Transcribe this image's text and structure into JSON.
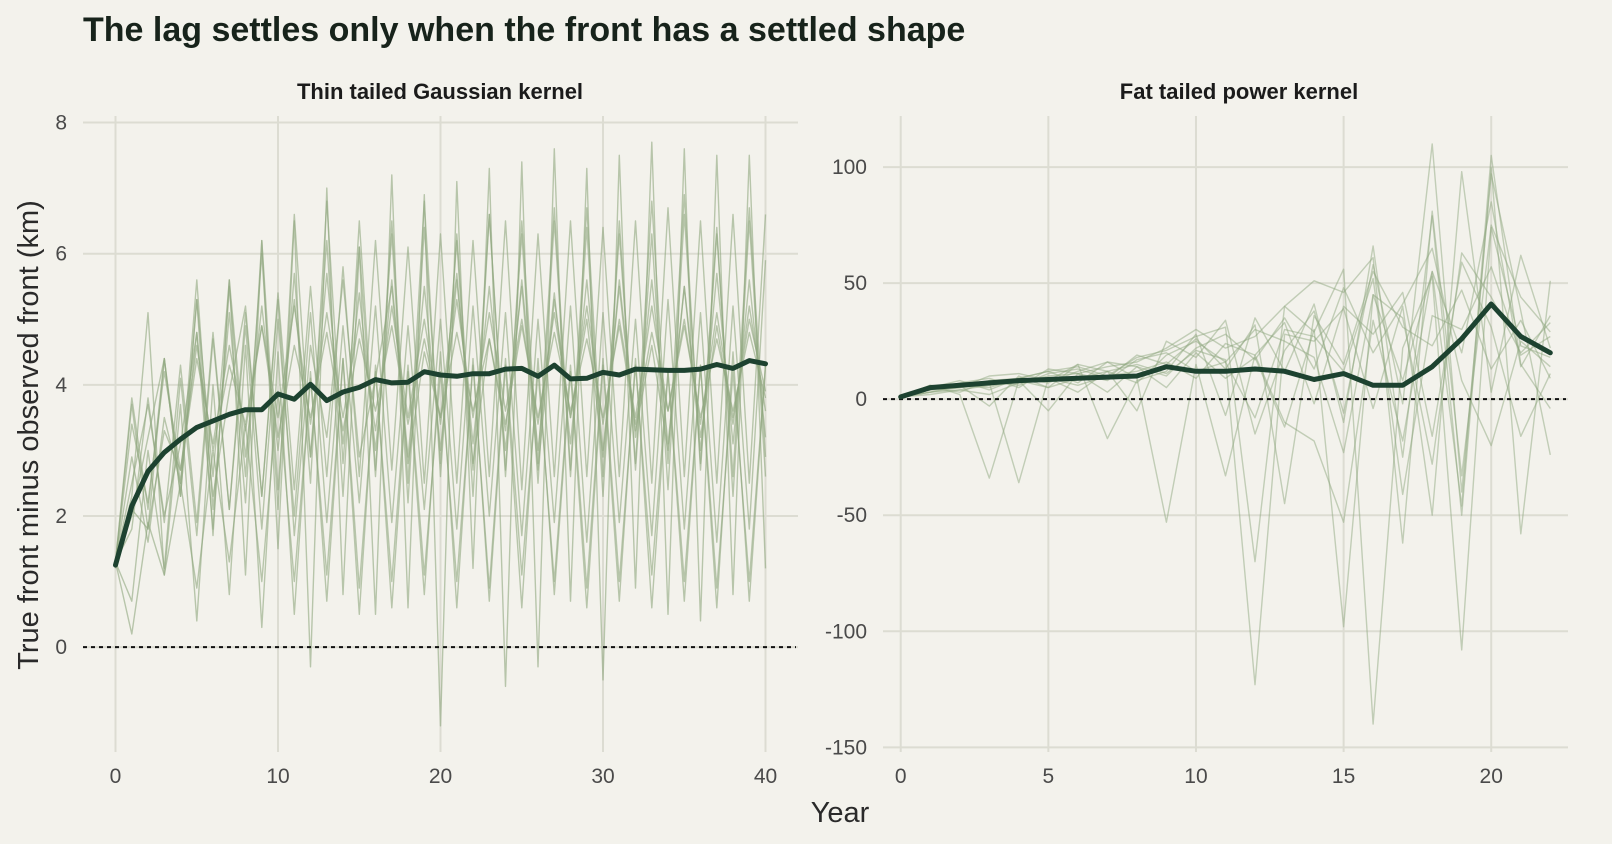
{
  "title": "The lag settles only when the front has a settled shape",
  "x_axis_title": "Year",
  "y_axis_title": "True front minus observed front (km)",
  "colors": {
    "background": "#f3f2ec",
    "grid": "#dcdcd2",
    "mean_line": "#1d4230",
    "run_lines": "#8fa77f",
    "zero_line": "#111111"
  },
  "chart_data": [
    {
      "type": "line",
      "title": "Thin tailed Gaussian kernel",
      "xlabel": "Year",
      "ylabel": "True front minus observed front (km)",
      "xlim": [
        -2,
        42
      ],
      "ylim": [
        -1.6,
        8.1
      ],
      "x_ticks": [
        0,
        10,
        20,
        30,
        40
      ],
      "y_ticks": [
        0,
        2,
        4,
        6,
        8
      ],
      "reference_line": {
        "y": 0,
        "style": "dotted"
      },
      "grid": true,
      "x": [
        0,
        1,
        2,
        3,
        4,
        5,
        6,
        7,
        8,
        9,
        10,
        11,
        12,
        13,
        14,
        15,
        16,
        17,
        18,
        19,
        20,
        21,
        22,
        23,
        24,
        25,
        26,
        27,
        28,
        29,
        30,
        31,
        32,
        33,
        34,
        35,
        36,
        37,
        38,
        39,
        40
      ],
      "mean": [
        1.25,
        2.15,
        2.68,
        2.97,
        3.17,
        3.35,
        3.45,
        3.55,
        3.62,
        3.62,
        3.86,
        3.78,
        4.01,
        3.76,
        3.89,
        3.96,
        4.08,
        4.03,
        4.04,
        4.2,
        4.15,
        4.13,
        4.17,
        4.17,
        4.24,
        4.25,
        4.13,
        4.3,
        4.09,
        4.1,
        4.19,
        4.15,
        4.24,
        4.23,
        4.22,
        4.22,
        4.24,
        4.31,
        4.25,
        4.37,
        4.32
      ],
      "runs": [
        [
          1.3,
          3.8,
          2.1,
          4.4,
          2.5,
          5.6,
          2.1,
          5.1,
          2.2,
          6.2,
          2.4,
          5.7,
          2.5,
          6.8,
          2.8,
          6.1,
          2.6,
          6.5,
          2.5,
          6.8,
          2.6,
          6.3,
          2.7,
          6.6,
          2.6,
          6.5,
          2.8,
          6.7,
          2.7,
          6.7,
          2.6,
          6.3,
          2.8,
          6.8,
          2.8,
          6.9,
          2.7,
          6.3,
          2.6,
          6.7,
          2.9
        ],
        [
          1.3,
          1.8,
          3.8,
          1.9,
          4.3,
          1.9,
          4.8,
          2.1,
          5.1,
          2.3,
          5.4,
          2.4,
          5.5,
          2.6,
          5.8,
          2.6,
          6.2,
          2.7,
          6.1,
          2.5,
          6.3,
          2.5,
          6.2,
          2.6,
          6.5,
          2.4,
          6.3,
          2.6,
          6.5,
          2.6,
          6.4,
          2.6,
          6.5,
          2.5,
          6.7,
          2.6,
          6.5,
          2.5,
          6.6,
          2.5,
          6.6
        ],
        [
          1.3,
          3.7,
          1.8,
          4.4,
          2.3,
          5.3,
          2.6,
          5.6,
          2.9,
          5.2,
          3.0,
          5.3,
          2.9,
          5.7,
          3.1,
          5.4,
          3.0,
          5.6,
          2.9,
          5.5,
          3.0,
          5.6,
          3.1,
          5.5,
          3.0,
          5.6,
          3.0,
          5.4,
          3.1,
          5.6,
          3.0,
          5.5,
          3.2,
          5.6,
          3.1,
          5.5,
          3.0,
          5.7,
          3.1,
          5.6,
          3.2
        ],
        [
          1.2,
          2.1,
          1.8,
          3.3,
          2.7,
          4.4,
          3.1,
          4.6,
          3.3,
          4.9,
          3.5,
          5.2,
          3.4,
          5.1,
          3.5,
          5.0,
          3.3,
          5.2,
          3.5,
          5.0,
          3.4,
          5.3,
          3.5,
          5.1,
          3.6,
          5.0,
          3.4,
          5.1,
          3.5,
          5.2,
          3.4,
          5.0,
          3.5,
          5.2,
          3.6,
          5.0,
          3.4,
          5.1,
          3.5,
          5.0,
          3.9
        ],
        [
          1.3,
          2.5,
          3.7,
          2.0,
          3.1,
          4.8,
          2.3,
          3.9,
          5.2,
          2.3,
          5.3,
          1.7,
          4.6,
          3.2,
          5.6,
          2.9,
          4.1,
          5.5,
          2.8,
          4.5,
          3.5,
          5.7,
          2.8,
          4.7,
          3.3,
          5.5,
          2.7,
          5.3,
          3.5,
          5.0,
          2.9,
          5.6,
          3.3,
          4.6,
          3.0,
          5.5,
          3.2,
          4.9,
          3.4,
          5.2,
          3.6
        ],
        [
          1.3,
          0.7,
          3.0,
          1.2,
          4.1,
          1.7,
          4.7,
          2.1,
          4.9,
          1.8,
          5.0,
          2.0,
          5.1,
          1.9,
          4.9,
          2.2,
          5.2,
          1.9,
          4.9,
          2.1,
          5.0,
          1.8,
          5.2,
          2.0,
          5.1,
          1.7,
          5.0,
          1.9,
          5.2,
          1.6,
          5.1,
          1.9,
          5.0,
          1.7,
          5.3,
          1.8,
          5.1,
          1.6,
          5.2,
          1.8,
          5.9
        ],
        [
          1.3,
          0.2,
          1.9,
          1.1,
          2.5,
          0.9,
          3.0,
          1.3,
          3.4,
          1.0,
          3.9,
          1.0,
          4.1,
          1.1,
          4.4,
          0.9,
          4.2,
          1.0,
          4.3,
          1.1,
          4.2,
          1.0,
          4.3,
          0.9,
          4.4,
          1.1,
          4.2,
          1.0,
          4.3,
          0.9,
          4.4,
          1.0,
          4.3,
          1.1,
          4.2,
          1.0,
          4.3,
          0.9,
          4.2,
          1.0,
          4.3
        ],
        [
          1.3,
          2.3,
          5.1,
          1.1,
          3.7,
          0.4,
          4.0,
          0.8,
          4.6,
          0.3,
          4.5,
          0.5,
          4.2,
          0.7,
          4.4,
          0.5,
          4.3,
          0.6,
          4.2,
          0.8,
          4.5,
          0.6,
          4.4,
          0.7,
          4.3,
          0.6,
          4.4,
          0.8,
          4.2,
          0.6,
          4.3,
          0.7,
          4.4,
          0.6,
          4.2,
          0.7,
          4.3,
          0.6,
          4.5,
          0.7,
          4.3
        ],
        [
          1.3,
          2.0,
          3.2,
          4.4,
          2.3,
          5.3,
          1.7,
          5.6,
          1.1,
          6.2,
          1.5,
          6.5,
          -0.3,
          7.0,
          0.8,
          6.1,
          0.5,
          7.2,
          0.6,
          6.9,
          -1.2,
          7.1,
          1.2,
          7.3,
          -0.6,
          7.4,
          -0.3,
          7.6,
          0.7,
          7.3,
          -0.5,
          7.5,
          0.9,
          7.7,
          0.5,
          7.6,
          0.4,
          7.5,
          0.8,
          7.5,
          1.2
        ],
        [
          1.3,
          2.9,
          1.6,
          3.5,
          2.5,
          4.8,
          1.8,
          5.5,
          2.6,
          6.0,
          2.1,
          6.6,
          2.9,
          6.2,
          2.3,
          6.5,
          2.7,
          6.3,
          2.2,
          6.4,
          2.8,
          6.2,
          2.3,
          6.6,
          2.7,
          6.3,
          2.5,
          6.5,
          2.6,
          6.4,
          2.3,
          6.5,
          2.7,
          6.3,
          2.4,
          6.6,
          2.8,
          6.4,
          2.3,
          6.5,
          2.6
        ],
        [
          1.3,
          3.4,
          2.2,
          4.2,
          2.7,
          4.6,
          3.0,
          4.3,
          3.4,
          4.9,
          3.2,
          4.6,
          3.5,
          4.8,
          3.3,
          4.7,
          3.6,
          4.9,
          3.4,
          4.7,
          3.5,
          4.8,
          3.6,
          4.7,
          3.4,
          4.9,
          3.5,
          4.8,
          3.6,
          4.7,
          3.5,
          4.9,
          3.4,
          4.8,
          3.6,
          4.9,
          3.5,
          4.7,
          3.6,
          4.8,
          3.8
        ]
      ]
    },
    {
      "type": "line",
      "title": "Fat tailed power kernel",
      "xlabel": "Year",
      "ylabel": "",
      "xlim": [
        -0.6,
        22.6
      ],
      "ylim": [
        -152,
        122
      ],
      "x_ticks": [
        0,
        5,
        10,
        15,
        20
      ],
      "y_ticks": [
        -150,
        -100,
        -50,
        0,
        50,
        100
      ],
      "reference_line": {
        "y": 0,
        "style": "dotted"
      },
      "grid": true,
      "x": [
        0,
        1,
        2,
        3,
        4,
        5,
        6,
        7,
        8,
        9,
        10,
        11,
        12,
        13,
        14,
        15,
        16,
        17,
        18,
        19,
        20,
        21,
        22
      ],
      "mean": [
        1,
        5,
        6,
        7,
        8,
        8.5,
        9,
        9.5,
        10,
        14,
        12,
        12,
        13,
        12,
        8.5,
        11,
        6,
        6,
        14,
        26,
        41,
        27,
        20
      ],
      "runs": [
        [
          1,
          4,
          6,
          -3,
          10,
          5,
          15,
          -17,
          8,
          12,
          28,
          -7,
          35,
          12,
          41,
          -10,
          66,
          -25,
          79,
          -50,
          100,
          -58,
          51
        ],
        [
          1,
          6,
          2,
          -34,
          8,
          -5,
          11,
          3,
          14,
          5,
          20,
          9,
          18,
          -12,
          30,
          -98,
          45,
          8,
          55,
          20,
          85,
          14,
          36
        ],
        [
          1,
          3,
          5,
          7,
          -36,
          9,
          3,
          12,
          -5,
          25,
          18,
          34,
          -15,
          21,
          38,
          -6,
          58,
          -2,
          110,
          -40,
          97,
          38,
          -24
        ],
        [
          1,
          5,
          6,
          8,
          9,
          12,
          14,
          10,
          18,
          21,
          27,
          31,
          -70,
          40,
          29,
          56,
          -140,
          22,
          53,
          -108,
          74,
          23,
          18
        ],
        [
          1,
          4,
          5,
          6,
          7,
          10,
          11,
          14,
          16,
          22,
          30,
          22,
          27,
          40,
          51,
          46,
          61,
          -62,
          81,
          -33,
          75,
          44,
          29
        ],
        [
          1,
          5,
          8,
          4,
          9,
          7,
          12,
          16,
          9,
          -53,
          15,
          -33,
          19,
          -10,
          -18,
          -53,
          34,
          -18,
          55,
          -46,
          105,
          15,
          -4
        ],
        [
          1,
          2,
          4,
          6,
          8,
          5,
          9,
          12,
          15,
          11,
          21,
          17,
          -123,
          28,
          25,
          39,
          -4,
          40,
          -50,
          98,
          3,
          62,
          22
        ],
        [
          1,
          3,
          4,
          2,
          7,
          9,
          6,
          10,
          12,
          16,
          9,
          24,
          19,
          33,
          -2,
          40,
          28,
          46,
          -16,
          59,
          31,
          -16,
          11
        ],
        [
          1,
          4,
          7,
          9,
          5,
          13,
          11,
          8,
          17,
          20,
          12,
          16,
          30,
          25,
          18,
          -23,
          45,
          35,
          -28,
          63,
          44,
          20,
          33
        ],
        [
          1,
          6,
          5,
          10,
          11,
          8,
          15,
          12,
          7,
          19,
          25,
          16,
          -8,
          30,
          27,
          12,
          52,
          -41,
          36,
          30,
          57,
          19,
          27
        ],
        [
          1,
          3,
          6,
          5,
          9,
          12,
          7,
          16,
          14,
          10,
          22,
          28,
          17,
          35,
          13,
          48,
          20,
          41,
          65,
          8,
          -20,
          25,
          14
        ],
        [
          1,
          5,
          3,
          8,
          6,
          11,
          13,
          9,
          19,
          15,
          26,
          13,
          32,
          -45,
          36,
          15,
          55,
          31,
          23,
          47,
          13,
          34,
          9
        ]
      ]
    }
  ]
}
